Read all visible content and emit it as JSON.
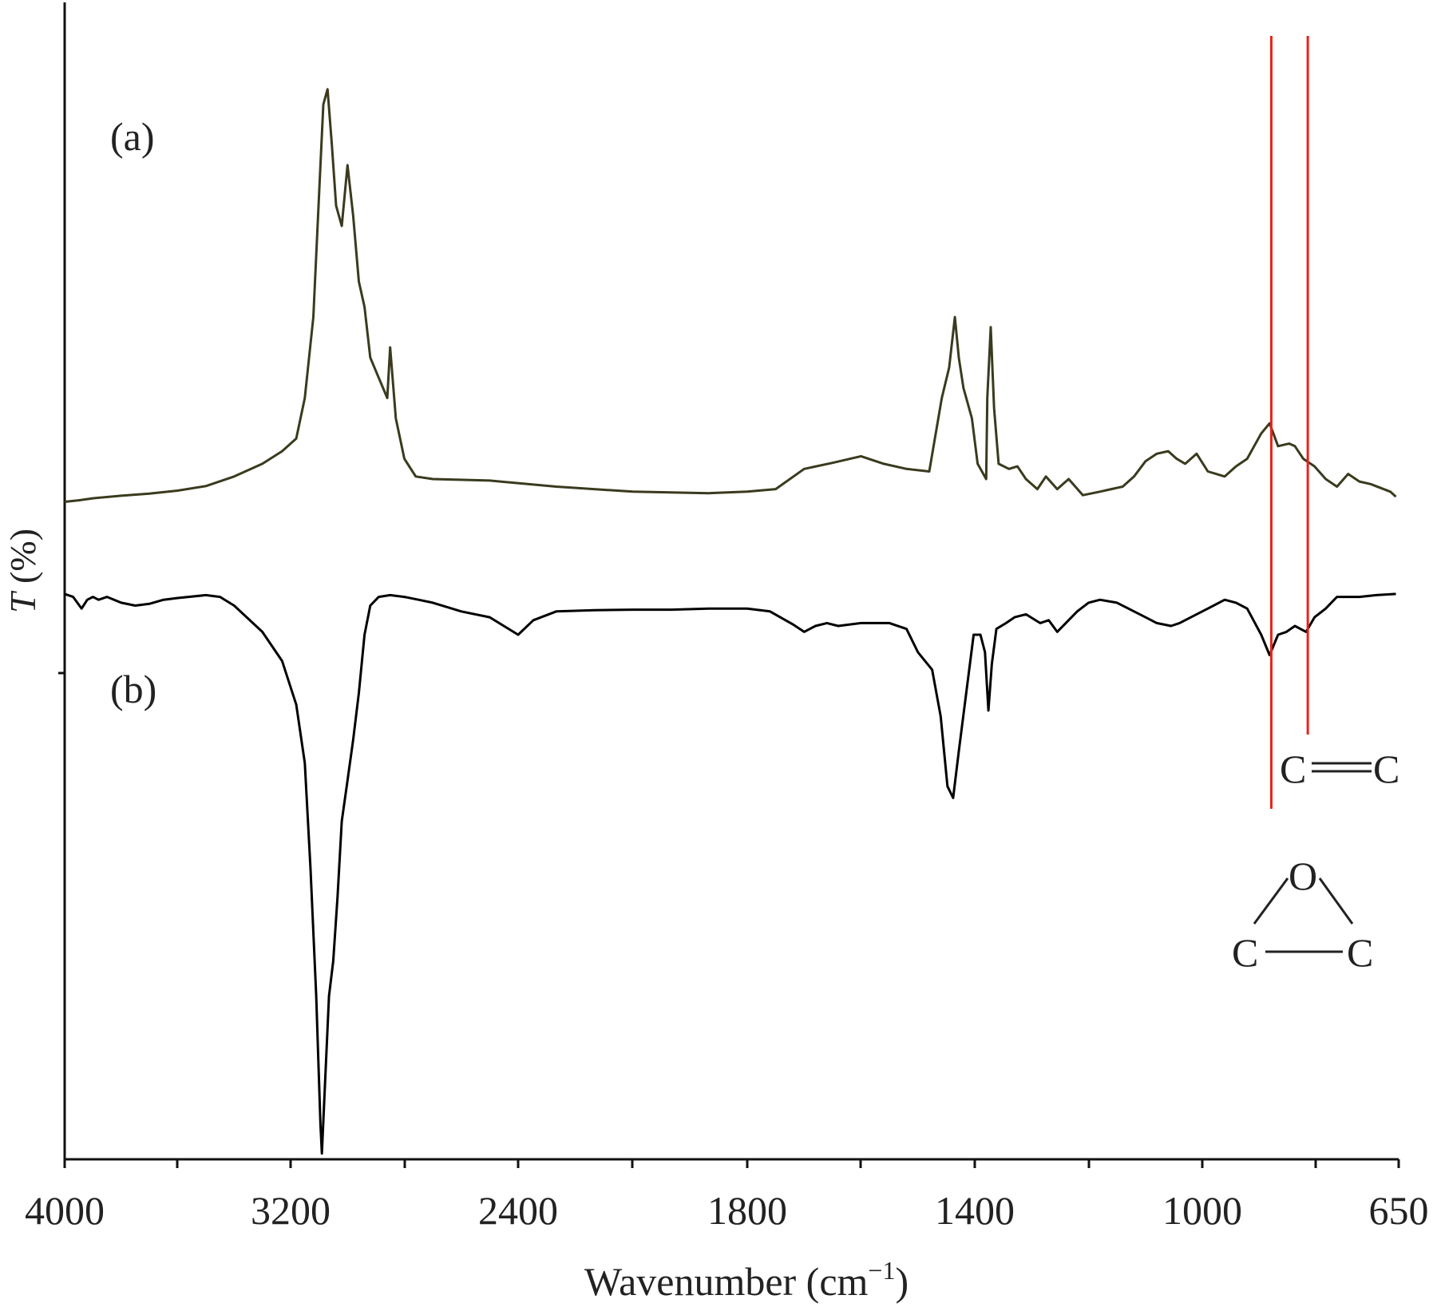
{
  "chart_data": {
    "type": "line",
    "title": "",
    "xlabel": "Wavenumber (cm",
    "xlabel_sup": "−1",
    "xlabel_close": ")",
    "ylabel_italic": "T",
    "ylabel_rest": " (%)",
    "x_axis": {
      "range": [
        4000,
        650
      ],
      "scale": "piecewise, as printed",
      "tick_labels": [
        "4000",
        "3200",
        "2400",
        "1800",
        "1400",
        "1000",
        "650"
      ],
      "grid": false
    },
    "colors": {
      "series_a": "#3a3a1e",
      "series_b": "#000000",
      "markers": "#e8231b"
    },
    "series": [
      {
        "name": "(a)",
        "points": [
          [
            4000,
            98.5
          ],
          [
            3950,
            98.2
          ],
          [
            3900,
            97.8
          ],
          [
            3800,
            97.3
          ],
          [
            3700,
            96.9
          ],
          [
            3600,
            96.3
          ],
          [
            3500,
            95.4
          ],
          [
            3400,
            93.5
          ],
          [
            3300,
            91.0
          ],
          [
            3230,
            88.5
          ],
          [
            3180,
            86.0
          ],
          [
            3150,
            78.0
          ],
          [
            3120,
            62.0
          ],
          [
            3100,
            38.0
          ],
          [
            3085,
            20.0
          ],
          [
            3070,
            17.0
          ],
          [
            3055,
            28.0
          ],
          [
            3040,
            40.0
          ],
          [
            3020,
            44.0
          ],
          [
            3000,
            32.0
          ],
          [
            2980,
            42.0
          ],
          [
            2960,
            55.0
          ],
          [
            2940,
            60.0
          ],
          [
            2920,
            70.0
          ],
          [
            2890,
            74.0
          ],
          [
            2860,
            78.0
          ],
          [
            2850,
            68.0
          ],
          [
            2830,
            82.0
          ],
          [
            2800,
            90.0
          ],
          [
            2760,
            93.5
          ],
          [
            2700,
            94.0
          ],
          [
            2500,
            94.3
          ],
          [
            2300,
            95.5
          ],
          [
            2100,
            96.5
          ],
          [
            1900,
            96.8
          ],
          [
            1800,
            96.5
          ],
          [
            1750,
            96.0
          ],
          [
            1700,
            92.0
          ],
          [
            1650,
            90.8
          ],
          [
            1600,
            89.5
          ],
          [
            1560,
            91.0
          ],
          [
            1520,
            92.0
          ],
          [
            1480,
            92.5
          ],
          [
            1458,
            78.0
          ],
          [
            1445,
            72.0
          ],
          [
            1435,
            62.0
          ],
          [
            1428,
            70.0
          ],
          [
            1420,
            76.0
          ],
          [
            1405,
            82.0
          ],
          [
            1395,
            91.0
          ],
          [
            1380,
            94.0
          ],
          [
            1378,
            78.0
          ],
          [
            1372,
            64.0
          ],
          [
            1366,
            80.0
          ],
          [
            1358,
            91.0
          ],
          [
            1340,
            92.0
          ],
          [
            1325,
            91.5
          ],
          [
            1310,
            94.0
          ],
          [
            1290,
            96.0
          ],
          [
            1275,
            93.5
          ],
          [
            1255,
            96.0
          ],
          [
            1235,
            94.0
          ],
          [
            1210,
            97.2
          ],
          [
            1180,
            96.5
          ],
          [
            1160,
            96.0
          ],
          [
            1140,
            95.5
          ],
          [
            1120,
            93.5
          ],
          [
            1100,
            90.5
          ],
          [
            1080,
            89.0
          ],
          [
            1060,
            88.5
          ],
          [
            1045,
            90.0
          ],
          [
            1030,
            91.0
          ],
          [
            1010,
            89.0
          ],
          [
            990,
            92.5
          ],
          [
            960,
            93.5
          ],
          [
            940,
            91.5
          ],
          [
            920,
            90.0
          ],
          [
            900,
            86.0
          ],
          [
            895,
            85.0
          ],
          [
            880,
            83.0
          ],
          [
            865,
            87.5
          ],
          [
            845,
            87.0
          ],
          [
            835,
            87.5
          ],
          [
            820,
            90.0
          ],
          [
            800,
            91.5
          ],
          [
            780,
            94.0
          ],
          [
            760,
            95.5
          ],
          [
            740,
            93.0
          ],
          [
            720,
            94.5
          ],
          [
            700,
            95.0
          ],
          [
            665,
            96.5
          ],
          [
            655,
            97.5
          ]
        ]
      },
      {
        "name": "(b)",
        "points": [
          [
            4000,
            97.0
          ],
          [
            3970,
            96.5
          ],
          [
            3940,
            94.5
          ],
          [
            3920,
            96.0
          ],
          [
            3900,
            96.5
          ],
          [
            3880,
            96.0
          ],
          [
            3850,
            96.5
          ],
          [
            3800,
            95.5
          ],
          [
            3750,
            95.0
          ],
          [
            3700,
            95.3
          ],
          [
            3650,
            96.0
          ],
          [
            3600,
            96.3
          ],
          [
            3500,
            96.8
          ],
          [
            3450,
            96.5
          ],
          [
            3400,
            95.0
          ],
          [
            3300,
            90.5
          ],
          [
            3230,
            85.5
          ],
          [
            3180,
            78.0
          ],
          [
            3150,
            68.0
          ],
          [
            3130,
            50.0
          ],
          [
            3110,
            28.0
          ],
          [
            3095,
            6.0
          ],
          [
            3090,
            1.0
          ],
          [
            3080,
            12.0
          ],
          [
            3065,
            28.0
          ],
          [
            3050,
            34.0
          ],
          [
            3035,
            45.0
          ],
          [
            3020,
            58.0
          ],
          [
            3000,
            65.0
          ],
          [
            2980,
            72.0
          ],
          [
            2960,
            80.0
          ],
          [
            2940,
            90.0
          ],
          [
            2920,
            95.0
          ],
          [
            2890,
            96.5
          ],
          [
            2850,
            96.8
          ],
          [
            2800,
            96.5
          ],
          [
            2750,
            96.0
          ],
          [
            2700,
            95.5
          ],
          [
            2600,
            94.0
          ],
          [
            2500,
            93.0
          ],
          [
            2400,
            90.0
          ],
          [
            2360,
            92.5
          ],
          [
            2300,
            94.0
          ],
          [
            2200,
            94.2
          ],
          [
            2100,
            94.3
          ],
          [
            2000,
            94.3
          ],
          [
            1900,
            94.5
          ],
          [
            1800,
            94.5
          ],
          [
            1760,
            94.0
          ],
          [
            1720,
            91.8
          ],
          [
            1700,
            90.5
          ],
          [
            1680,
            91.5
          ],
          [
            1660,
            92.0
          ],
          [
            1640,
            91.5
          ],
          [
            1600,
            92.0
          ],
          [
            1550,
            92.0
          ],
          [
            1520,
            91.0
          ],
          [
            1500,
            87.0
          ],
          [
            1475,
            84.0
          ],
          [
            1460,
            76.0
          ],
          [
            1448,
            64.0
          ],
          [
            1438,
            62.0
          ],
          [
            1428,
            70.0
          ],
          [
            1415,
            80.0
          ],
          [
            1402,
            90.0
          ],
          [
            1390,
            90.0
          ],
          [
            1382,
            87.0
          ],
          [
            1376,
            77.0
          ],
          [
            1370,
            85.0
          ],
          [
            1362,
            91.0
          ],
          [
            1345,
            92.0
          ],
          [
            1330,
            93.0
          ],
          [
            1310,
            93.5
          ],
          [
            1285,
            92.0
          ],
          [
            1270,
            92.5
          ],
          [
            1255,
            90.5
          ],
          [
            1240,
            92.0
          ],
          [
            1220,
            94.0
          ],
          [
            1200,
            95.5
          ],
          [
            1180,
            96.0
          ],
          [
            1150,
            95.5
          ],
          [
            1120,
            94.0
          ],
          [
            1100,
            93.0
          ],
          [
            1080,
            92.0
          ],
          [
            1055,
            91.5
          ],
          [
            1040,
            92.0
          ],
          [
            1020,
            93.0
          ],
          [
            990,
            94.5
          ],
          [
            960,
            96.0
          ],
          [
            940,
            95.5
          ],
          [
            920,
            94.5
          ],
          [
            895,
            90.0
          ],
          [
            880,
            86.5
          ],
          [
            865,
            90.0
          ],
          [
            850,
            90.5
          ],
          [
            835,
            91.5
          ],
          [
            815,
            90.5
          ],
          [
            800,
            93.0
          ],
          [
            780,
            94.5
          ],
          [
            760,
            96.5
          ],
          [
            720,
            96.5
          ],
          [
            690,
            96.8
          ],
          [
            655,
            97.0
          ]
        ]
      }
    ],
    "annotations": {
      "label_a": "(a)",
      "label_b": "(b)",
      "marker_lines_wavenumber": [
        877,
        812
      ],
      "cc_double_left": "C",
      "cc_double_right": "C",
      "epoxide_o": "O",
      "epoxide_c_left": "C",
      "epoxide_c_right": "C"
    }
  }
}
